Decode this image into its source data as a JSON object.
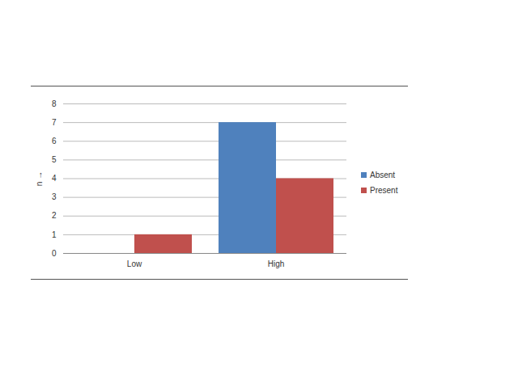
{
  "chart_data": {
    "type": "bar",
    "categories": [
      "Low",
      "High"
    ],
    "series": [
      {
        "name": "Absent",
        "color": "#4f81bd",
        "values": [
          0,
          7
        ]
      },
      {
        "name": "Present",
        "color": "#c0504d",
        "values": [
          1,
          4
        ]
      }
    ],
    "y_label": "n",
    "ylim": [
      0,
      8
    ],
    "yticks": [
      0,
      1,
      2,
      3,
      4,
      5,
      6,
      7,
      8
    ],
    "grid": true,
    "legend": "right"
  }
}
